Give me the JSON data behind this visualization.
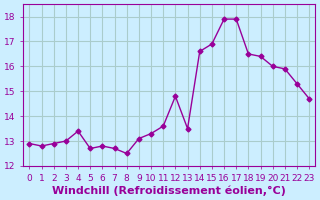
{
  "x": [
    0,
    1,
    2,
    3,
    4,
    5,
    6,
    7,
    8,
    9,
    10,
    11,
    12,
    13,
    14,
    15,
    16,
    17,
    18,
    19,
    20,
    21,
    22,
    23
  ],
  "y": [
    12.9,
    12.8,
    12.9,
    13.0,
    13.4,
    12.7,
    12.8,
    12.7,
    12.5,
    13.1,
    13.3,
    13.6,
    14.8,
    13.5,
    16.6,
    16.9,
    17.9,
    17.9,
    16.5,
    16.4,
    16.0,
    15.9,
    15.3,
    14.7
  ],
  "line_color": "#990099",
  "marker": "D",
  "marker_size": 2.5,
  "bg_color": "#cceeff",
  "grid_color": "#aacccc",
  "xlabel": "Windchill (Refroidissement éolien,°C)",
  "xlabel_color": "#990099",
  "xlabel_fontsize": 8,
  "tick_color": "#990099",
  "tick_fontsize": 6.5,
  "ylim": [
    12,
    18.5
  ],
  "yticks": [
    12,
    13,
    14,
    15,
    16,
    17,
    18
  ],
  "xlim": [
    -0.5,
    23.5
  ],
  "xticks": [
    0,
    1,
    2,
    3,
    4,
    5,
    6,
    7,
    8,
    9,
    10,
    11,
    12,
    13,
    14,
    15,
    16,
    17,
    18,
    19,
    20,
    21,
    22,
    23
  ]
}
